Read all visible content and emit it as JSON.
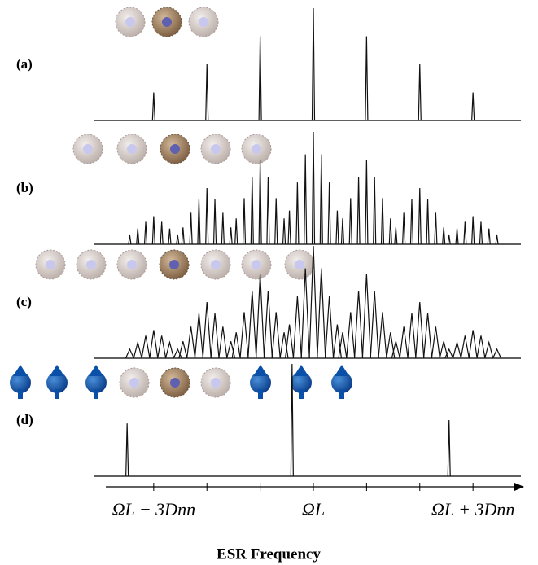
{
  "chart_data": {
    "type": "spectrum",
    "xlabel": "ESR Frequency",
    "xlim": [
      -3.9,
      3.9
    ],
    "xticks": [
      {
        "value": -3,
        "label": "ΩL − 3Dnn"
      },
      {
        "value": 0,
        "label": "ΩL"
      },
      {
        "value": 3,
        "label": "ΩL + 3Dnn"
      }
    ],
    "minor_xticks": [
      -2,
      -1,
      1,
      2
    ],
    "ylim": [
      0,
      1
    ],
    "color": "#111111",
    "panels": [
      {
        "label": "(a)",
        "style": "stick",
        "x": [
          -3,
          -2,
          -1,
          0,
          1,
          2,
          3
        ],
        "values": [
          0.25,
          0.5,
          0.75,
          1,
          0.75,
          0.5,
          0.25
        ]
      },
      {
        "label": "(b)",
        "style": "stick",
        "x": [
          -3.45,
          -3.3,
          -3.15,
          -3,
          -2.85,
          -2.7,
          -2.55,
          -2.45,
          -2.3,
          -2.15,
          -2,
          -1.85,
          -1.7,
          -1.55,
          -1.45,
          -1.3,
          -1.15,
          -1,
          -0.85,
          -0.7,
          -0.55,
          -0.45,
          -0.3,
          -0.15,
          0,
          0.15,
          0.3,
          0.45,
          0.55,
          0.7,
          0.85,
          1,
          1.15,
          1.3,
          1.45,
          1.55,
          1.7,
          1.85,
          2,
          2.15,
          2.3,
          2.45,
          2.55,
          2.7,
          2.85,
          3,
          3.15,
          3.3,
          3.45
        ],
        "values": [
          0.08,
          0.14,
          0.2,
          0.25,
          0.2,
          0.14,
          0.08,
          0.15,
          0.28,
          0.4,
          0.5,
          0.4,
          0.28,
          0.15,
          0.23,
          0.41,
          0.6,
          0.75,
          0.6,
          0.41,
          0.23,
          0.3,
          0.55,
          0.8,
          1,
          0.8,
          0.55,
          0.3,
          0.23,
          0.41,
          0.6,
          0.75,
          0.6,
          0.41,
          0.23,
          0.15,
          0.28,
          0.4,
          0.5,
          0.4,
          0.28,
          0.15,
          0.08,
          0.14,
          0.2,
          0.25,
          0.2,
          0.14,
          0.08
        ]
      },
      {
        "label": "(c)",
        "style": "triangle",
        "x": [
          -3.45,
          -3.3,
          -3.15,
          -3,
          -2.85,
          -2.7,
          -2.55,
          -2.45,
          -2.3,
          -2.15,
          -2,
          -1.85,
          -1.7,
          -1.55,
          -1.45,
          -1.3,
          -1.15,
          -1,
          -0.85,
          -0.7,
          -0.55,
          -0.45,
          -0.3,
          -0.15,
          0,
          0.15,
          0.3,
          0.45,
          0.55,
          0.7,
          0.85,
          1,
          1.15,
          1.3,
          1.45,
          1.55,
          1.7,
          1.85,
          2,
          2.15,
          2.3,
          2.45,
          2.55,
          2.7,
          2.85,
          3,
          3.15,
          3.3,
          3.45
        ],
        "values": [
          0.08,
          0.14,
          0.2,
          0.25,
          0.2,
          0.14,
          0.08,
          0.15,
          0.28,
          0.4,
          0.5,
          0.4,
          0.28,
          0.15,
          0.23,
          0.41,
          0.6,
          0.75,
          0.6,
          0.41,
          0.23,
          0.3,
          0.55,
          0.8,
          1,
          0.8,
          0.55,
          0.3,
          0.23,
          0.41,
          0.6,
          0.75,
          0.6,
          0.41,
          0.23,
          0.15,
          0.28,
          0.4,
          0.5,
          0.4,
          0.28,
          0.15,
          0.08,
          0.14,
          0.2,
          0.25,
          0.2,
          0.14,
          0.08
        ]
      },
      {
        "label": "(d)",
        "style": "stick",
        "x": [
          -3.5,
          -0.4,
          2.55
        ],
        "values": [
          0.47,
          1,
          0.5
        ]
      }
    ]
  }
}
